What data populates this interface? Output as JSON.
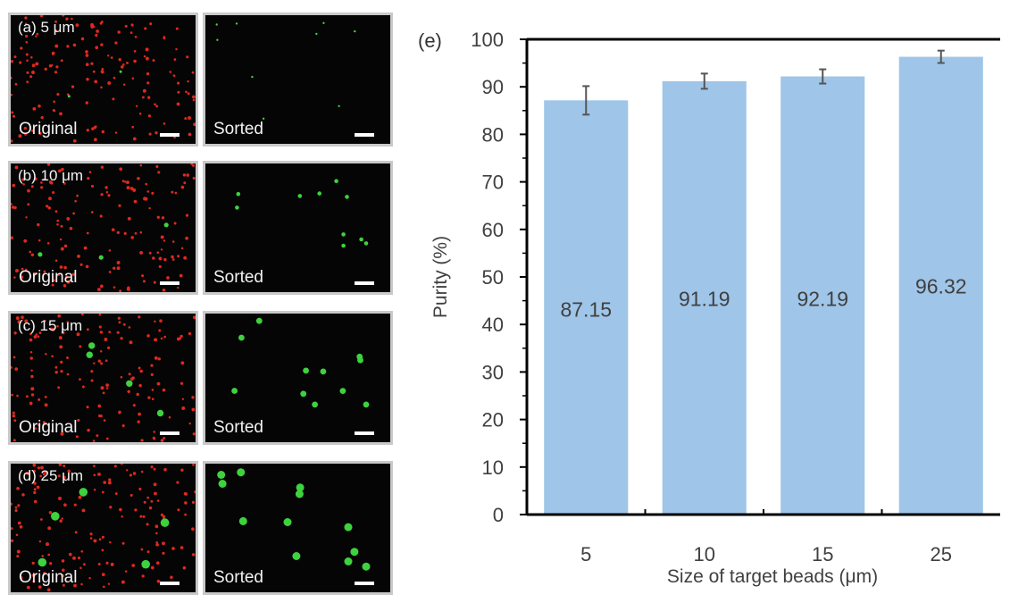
{
  "panels": [
    {
      "label": "(a) 5 μm",
      "original_caption": "Original",
      "sorted_caption": "Sorted"
    },
    {
      "label": "(b) 10 μm",
      "original_caption": "Original",
      "sorted_caption": "Sorted"
    },
    {
      "label": "(c) 15 μm",
      "original_caption": "Original",
      "sorted_caption": "Sorted"
    },
    {
      "label": "(d) 25 μm",
      "original_caption": "Original",
      "sorted_caption": "Sorted"
    }
  ],
  "colors": {
    "bar": "#9fc5e8",
    "red_bead": "#e0281e",
    "green_bead": "#3ed23e",
    "error_bar": "#555555",
    "axis": "#000000",
    "text": "#404040"
  },
  "chart_data": {
    "type": "bar",
    "panel_label": "(e)",
    "categories": [
      "5",
      "10",
      "15",
      "25"
    ],
    "values": [
      87.15,
      91.19,
      92.19,
      96.32
    ],
    "value_labels": [
      "87.15",
      "91.19",
      "92.19",
      "96.32"
    ],
    "error": [
      3.0,
      1.6,
      1.5,
      1.3
    ],
    "xlabel": "Size of target beads (μm)",
    "ylabel": "Purity (%)",
    "ylim": [
      0,
      100
    ],
    "yticks": [
      "0",
      "10",
      "20",
      "30",
      "40",
      "50",
      "60",
      "70",
      "80",
      "90",
      "100"
    ],
    "grid": false,
    "legend": "none"
  }
}
